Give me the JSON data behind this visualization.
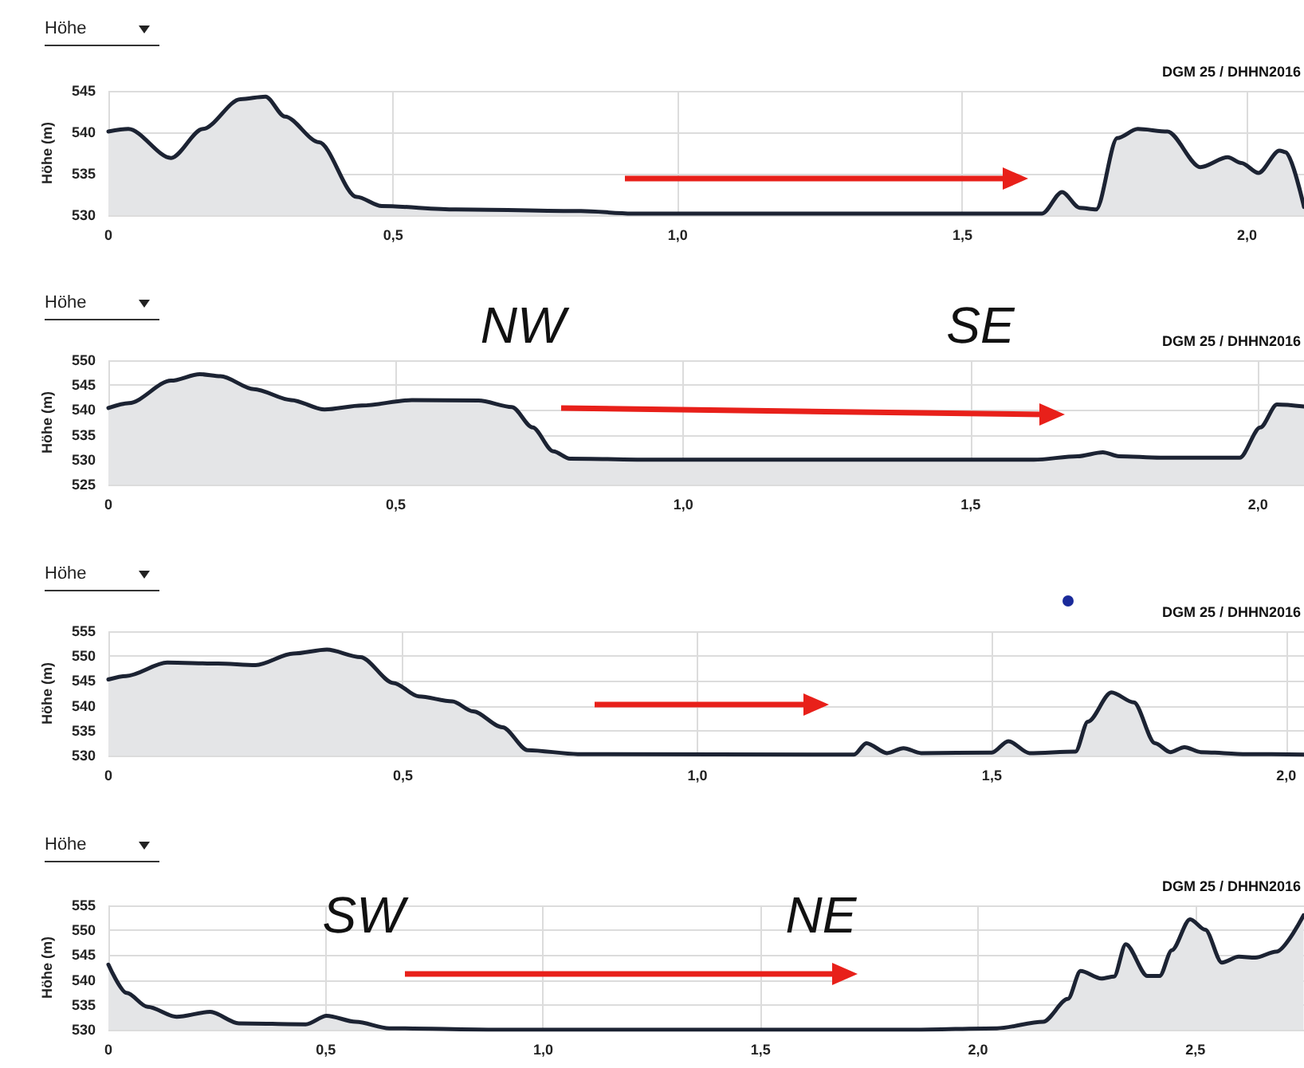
{
  "chart_data": [
    {
      "type": "area",
      "title": "Höhe",
      "subtitle": "DGM 25 / DHHN2016",
      "ylabel": "Höhe (m)",
      "grid": true,
      "xlim": [
        0,
        2.1
      ],
      "xticks": [
        {
          "value": 0,
          "label": "0"
        },
        {
          "value": 0.5,
          "label": "0,5"
        },
        {
          "value": 1,
          "label": "1,0"
        },
        {
          "value": 1.5,
          "label": "1,5"
        },
        {
          "value": 2,
          "label": "2,0"
        }
      ],
      "ylim": [
        530,
        545
      ],
      "yticks": [
        530,
        535,
        540,
        545
      ],
      "series": [
        {
          "color": "#1c2333",
          "x": [
            0,
            0.035,
            0.11,
            0.166,
            0.232,
            0.276,
            0.31,
            0.37,
            0.436,
            0.48,
            0.61,
            0.83,
            0.92,
            1.41,
            1.64,
            1.675,
            1.706,
            1.735,
            1.772,
            1.808,
            1.86,
            1.918,
            1.966,
            1.99,
            2.02,
            2.057,
            2.068,
            2.1
          ],
          "values": [
            540.1,
            540.4,
            536.9,
            540.4,
            544,
            544.3,
            541.9,
            538.8,
            532.2,
            531.1,
            530.7,
            530.5,
            530.2,
            530.2,
            530.2,
            532.8,
            530.9,
            530.7,
            539.3,
            540.4,
            540.1,
            535.8,
            537,
            536.3,
            535.1,
            537.8,
            537.6,
            531
          ]
        }
      ]
    },
    {
      "type": "area",
      "title": "Höhe",
      "subtitle": "DGM 25 / DHHN2016",
      "ylabel": "Höhe (m)",
      "grid": true,
      "annotations": [
        "NW",
        "SE"
      ],
      "xlim": [
        0,
        2.08
      ],
      "xticks": [
        {
          "value": 0,
          "label": "0"
        },
        {
          "value": 0.5,
          "label": "0,5"
        },
        {
          "value": 1,
          "label": "1,0"
        },
        {
          "value": 1.5,
          "label": "1,5"
        },
        {
          "value": 2,
          "label": "2,0"
        }
      ],
      "ylim": [
        525,
        550
      ],
      "yticks": [
        525,
        530,
        535,
        540,
        545,
        550
      ],
      "series": [
        {
          "color": "#1c2333",
          "x": [
            0,
            0.036,
            0.109,
            0.159,
            0.195,
            0.253,
            0.318,
            0.376,
            0.441,
            0.528,
            0.644,
            0.702,
            0.738,
            0.774,
            0.803,
            0.962,
            1.61,
            1.686,
            1.73,
            1.758,
            1.83,
            1.968,
            2.004,
            2.033,
            2.08
          ],
          "values": [
            540.4,
            541.4,
            545.9,
            547.2,
            546.8,
            544.2,
            542,
            540.1,
            540.9,
            542,
            541.9,
            540.6,
            536.5,
            531.7,
            530.2,
            530,
            530,
            530.7,
            531.5,
            530.7,
            530.4,
            530.4,
            536.5,
            541.1,
            540.7
          ]
        }
      ]
    },
    {
      "type": "area",
      "title": "Höhe",
      "subtitle": "DGM 25 / DHHN2016",
      "ylabel": "Höhe (m)",
      "grid": true,
      "xlim": [
        0,
        2.03
      ],
      "xticks": [
        {
          "value": 0,
          "label": "0"
        },
        {
          "value": 0.5,
          "label": "0,5"
        },
        {
          "value": 1,
          "label": "1,0"
        },
        {
          "value": 1.5,
          "label": "1,5"
        },
        {
          "value": 2,
          "label": "2,0"
        }
      ],
      "ylim": [
        530,
        555
      ],
      "yticks": [
        530,
        535,
        540,
        545,
        550,
        555
      ],
      "series": [
        {
          "color": "#1c2333",
          "x": [
            0,
            0.03,
            0.1,
            0.186,
            0.25,
            0.314,
            0.371,
            0.428,
            0.484,
            0.527,
            0.584,
            0.619,
            0.669,
            0.712,
            0.797,
            1.266,
            1.287,
            1.322,
            1.35,
            1.38,
            1.5,
            1.528,
            1.564,
            1.642,
            1.663,
            1.703,
            1.741,
            1.777,
            1.803,
            1.827,
            1.855,
            1.933,
            2.03
          ],
          "values": [
            545.3,
            546,
            548.7,
            548.5,
            548.2,
            550.5,
            551.3,
            549.8,
            544.6,
            541.9,
            540.9,
            538.9,
            535.7,
            531.1,
            530.3,
            530.2,
            532.5,
            530.5,
            531.5,
            530.5,
            530.6,
            532.9,
            530.5,
            530.8,
            536.8,
            542.7,
            540.7,
            532.5,
            530.7,
            531.7,
            530.7,
            530.3,
            530.2
          ]
        }
      ]
    },
    {
      "type": "area",
      "title": "Höhe",
      "subtitle": "DGM 25 / DHHN2016",
      "ylabel": "Höhe (m)",
      "grid": true,
      "annotations": [
        "SW",
        "NE"
      ],
      "xlim": [
        0,
        2.75
      ],
      "xticks": [
        {
          "value": 0,
          "label": "0"
        },
        {
          "value": 0.5,
          "label": "0,5"
        },
        {
          "value": 1,
          "label": "1,0"
        },
        {
          "value": 1.5,
          "label": "1,5"
        },
        {
          "value": 2,
          "label": "2,0"
        },
        {
          "value": 2.5,
          "label": "2,5"
        }
      ],
      "ylim": [
        530,
        555
      ],
      "yticks": [
        530,
        535,
        540,
        545,
        550,
        555
      ],
      "series": [
        {
          "color": "#1c2333",
          "x": [
            0,
            0.042,
            0.09,
            0.157,
            0.234,
            0.3,
            0.454,
            0.502,
            0.569,
            0.646,
            0.895,
            1.852,
            2.044,
            2.15,
            2.207,
            2.236,
            2.284,
            2.313,
            2.34,
            2.39,
            2.418,
            2.446,
            2.488,
            2.523,
            2.561,
            2.6,
            2.638,
            2.686,
            2.749
          ],
          "values": [
            543.1,
            537.4,
            534.6,
            532.6,
            533.6,
            531.3,
            531.1,
            532.8,
            531.6,
            530.3,
            530,
            530,
            530.3,
            531.6,
            536.2,
            541.8,
            540.3,
            540.7,
            547.2,
            540.8,
            540.8,
            546,
            552.2,
            550.1,
            543.5,
            544.7,
            544.5,
            545.7,
            553
          ]
        }
      ]
    }
  ]
}
